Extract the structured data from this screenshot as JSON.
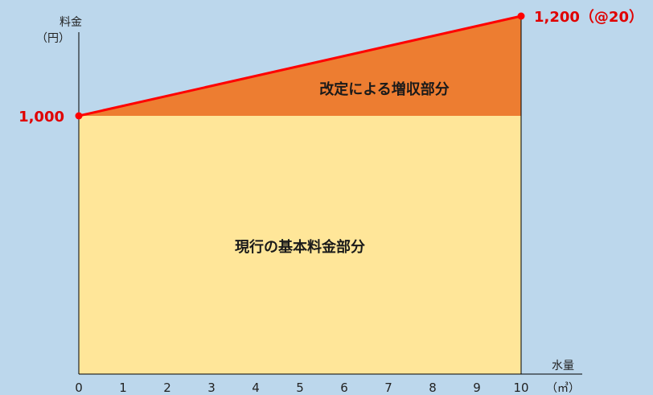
{
  "chart_data": {
    "type": "area",
    "ylabel": "料金",
    "yunit": "（円）",
    "xlabel": "水量",
    "xunit": "（㎥）",
    "x_ticks": [
      0,
      1,
      2,
      3,
      4,
      5,
      6,
      7,
      8,
      9,
      10
    ],
    "xlim": [
      0,
      10
    ],
    "ylim": [
      0,
      1200
    ],
    "base_fee": 1000,
    "revised_total": 1200,
    "rate_label": "1,200（@20）",
    "base_label": "1,000",
    "regions": [
      {
        "name": "改定による増収部分",
        "color": "#ed7d31"
      },
      {
        "name": "現行の基本料金部分",
        "color": "#ffe699"
      }
    ],
    "line": {
      "color": "#ff0000",
      "points": [
        {
          "x": 0,
          "y": 1000
        },
        {
          "x": 10,
          "y": 1200
        }
      ]
    },
    "grid": false,
    "legend": "none"
  }
}
